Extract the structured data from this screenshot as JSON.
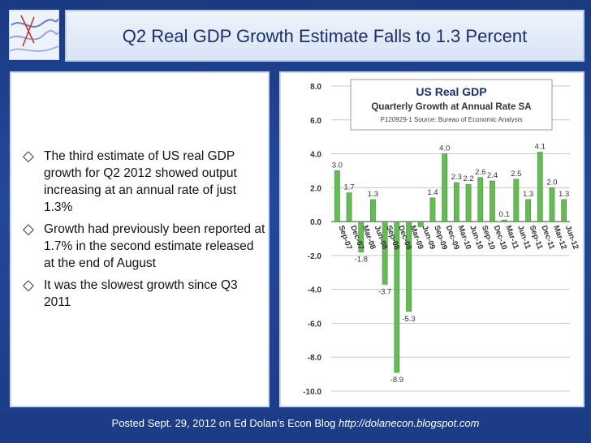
{
  "slide": {
    "title": "Q2 Real GDP Growth Estimate Falls to 1.3 Percent",
    "bullets": [
      "The third estimate of US real GDP growth for Q2 2012 showed output increasing at an annual rate of  just 1.3%",
      "Growth had previously been reported at 1.7% in the second estimate released at the end of August",
      "It was the slowest growth since Q3 2011"
    ],
    "bullet_icon": "diamond-outline-bullet-icon",
    "caption_text": "Posted Sept. 29, 2012 on Ed Dolan’s Econ Blog",
    "caption_url": "http://dolanecon.blogspot.com"
  },
  "colors": {
    "background": "#1f3f86",
    "bar": "#66bb55",
    "bar_edge": "#3f8f3a"
  },
  "chart_data": {
    "type": "bar",
    "title": "US  Real GDP",
    "subtitle": "Quarterly Growth at Annual Rate SA",
    "source": "P120929-1 Source: Bureau of Economic Analysis",
    "ylim": [
      -10,
      8
    ],
    "yticks": [
      "-10.0",
      "-8.0",
      "-6.0",
      "-4.0",
      "-2.0",
      "0.0",
      "2.0",
      "4.0",
      "6.0",
      "8.0"
    ],
    "ytick_values": [
      -10,
      -8,
      -6,
      -4,
      -2,
      0,
      2,
      4,
      6,
      8
    ],
    "category_labels": [
      "Sep-07",
      "Dec-07",
      "Mar-08",
      "Jun-08",
      "Sep-08",
      "Dec-08",
      "Mar-09",
      "Jun-09",
      "Sep-09",
      "Dec-09",
      "Mar-10",
      "Jun-10",
      "Sep-10",
      "Dec-10",
      "Mar-11",
      "Jun-11",
      "Sep-11",
      "Dec-11",
      "Mar-12",
      "Jun-12"
    ],
    "values": [
      3.0,
      1.7,
      -1.8,
      1.3,
      -3.7,
      -8.9,
      -5.3,
      -0.3,
      1.4,
      4.0,
      2.3,
      2.2,
      2.6,
      2.4,
      0.1,
      2.5,
      1.3,
      4.1,
      2.0,
      1.3
    ],
    "data_labels": [
      "3.0",
      "1.7",
      "-1.8",
      "1.3",
      "-3.7",
      "-8.9",
      "-5.3",
      "",
      "1.4",
      "4.0",
      "2.3",
      "2.2",
      "2.6",
      "2.4",
      "0.1",
      "2.5",
      "1.3",
      "4.1",
      "2.0",
      "1.3"
    ],
    "grid": true
  }
}
